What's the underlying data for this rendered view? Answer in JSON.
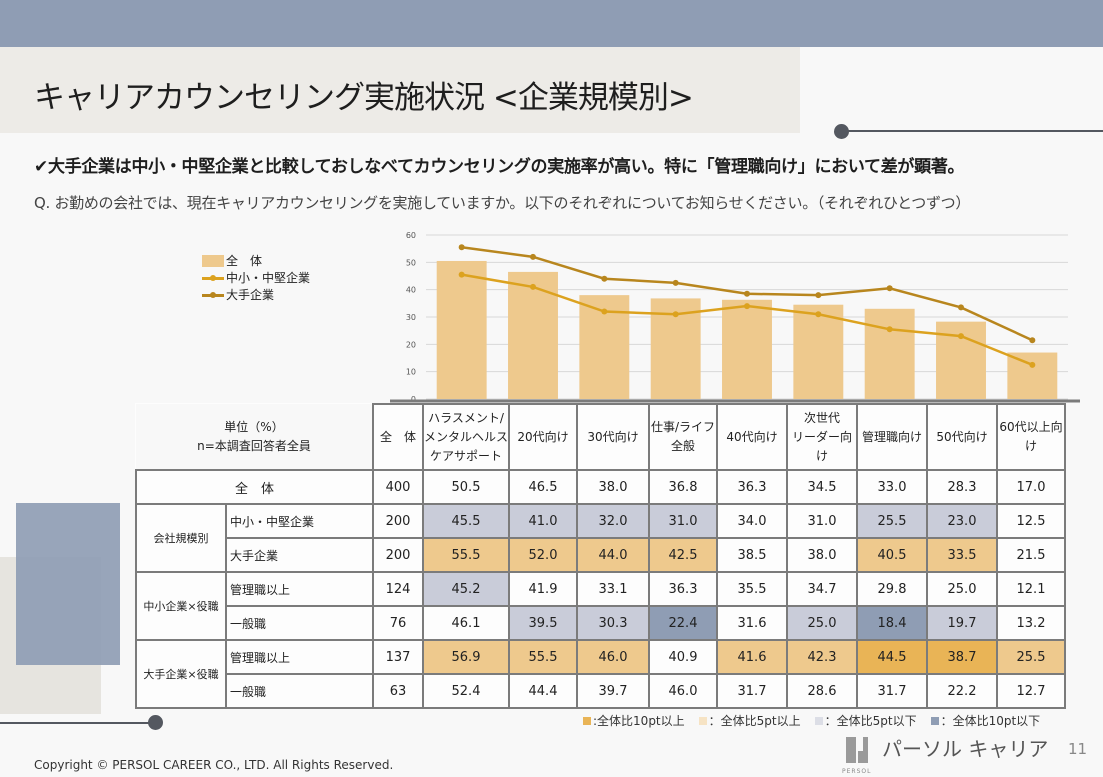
{
  "header": {
    "title": "キャリアカウンセリング実施状況 <企業規模別>"
  },
  "headline": "✔大手企業は中小・中堅企業と比較しておしなべてカウンセリングの実施率が高い。特に「管理職向け」において差が顕著。",
  "question": "Q.  お勤めの会社では、現在キャリアカウンセリングを実施していますか。以下のそれぞれについてお知らせください。（それぞれひとつずつ）",
  "colors": {
    "bar": "#eec98d",
    "line_sme": "#dca21f",
    "line_large": "#b8861e",
    "top_band": "#8f9db4",
    "plus10": "#e9b456",
    "plus5": "#eec98d",
    "minus5": "#c9ccd9",
    "minus10": "#8f9db4"
  },
  "chart_data": {
    "type": "bar",
    "title": "",
    "xlabel": "",
    "ylabel": "",
    "ylim": [
      0,
      60
    ],
    "yticks": [
      "0",
      "10",
      "20",
      "30",
      "40",
      "50",
      "60"
    ],
    "grid": true,
    "legend_position": "top-left",
    "categories": [
      "ハラスメント/メンタルヘルスケアサポート",
      "20代向け",
      "30代向け",
      "仕事/ライフ全般",
      "40代向け",
      "次世代リーダー向け",
      "管理職向け",
      "50代向け",
      "60代以上向け"
    ],
    "series": [
      {
        "name": "全　体",
        "kind": "bar",
        "values": [
          50.5,
          46.5,
          38.0,
          36.8,
          36.3,
          34.5,
          33.0,
          28.3,
          17.0
        ]
      },
      {
        "name": "中小・中堅企業",
        "kind": "line",
        "values": [
          45.5,
          41.0,
          32.0,
          31.0,
          34.0,
          31.0,
          25.5,
          23.0,
          12.5
        ]
      },
      {
        "name": "大手企業",
        "kind": "line",
        "values": [
          55.5,
          52.0,
          44.0,
          42.5,
          38.5,
          38.0,
          40.5,
          33.5,
          21.5
        ]
      }
    ]
  },
  "legend": {
    "total": "全　体",
    "sme": "中小・中堅企業",
    "large": "大手企業"
  },
  "table": {
    "unit_label": "単位（%）",
    "base_label": "n=本調査回答者全員",
    "n_header": "全　体",
    "headers": [
      "ハラスメント/\nメンタルヘルス\nケアサポート",
      "20代向け",
      "30代向け",
      "仕事/ライフ\n全般",
      "40代向け",
      "次世代\nリーダー向\nけ",
      "管理職向け",
      "50代向け",
      "60代以上向\nけ"
    ],
    "total_row": {
      "label": "全　体",
      "n": "400",
      "values": [
        "50.5",
        "46.5",
        "38.0",
        "36.8",
        "36.3",
        "34.5",
        "33.0",
        "28.3",
        "17.0"
      ]
    },
    "groups": [
      {
        "label": "会社規模別",
        "rows": [
          {
            "label": "中小・中堅企業",
            "n": "200",
            "values": [
              "45.5",
              "41.0",
              "32.0",
              "31.0",
              "34.0",
              "31.0",
              "25.5",
              "23.0",
              "12.5"
            ],
            "shade": [
              "m5",
              "m5",
              "m5",
              "m5",
              "",
              "",
              "m5",
              "m5",
              ""
            ]
          },
          {
            "label": "大手企業",
            "n": "200",
            "values": [
              "55.5",
              "52.0",
              "44.0",
              "42.5",
              "38.5",
              "38.0",
              "40.5",
              "33.5",
              "21.5"
            ],
            "shade": [
              "p5",
              "p5",
              "p5",
              "p5",
              "",
              "",
              "p5",
              "p5",
              ""
            ]
          }
        ]
      },
      {
        "label": "中小企業×役職",
        "rows": [
          {
            "label": "管理職以上",
            "n": "124",
            "values": [
              "45.2",
              "41.9",
              "33.1",
              "36.3",
              "35.5",
              "34.7",
              "29.8",
              "25.0",
              "12.1"
            ],
            "shade": [
              "m5",
              "",
              "",
              "",
              "",
              "",
              "",
              "",
              ""
            ]
          },
          {
            "label": "一般職",
            "n": "76",
            "values": [
              "46.1",
              "39.5",
              "30.3",
              "22.4",
              "31.6",
              "25.0",
              "18.4",
              "19.7",
              "13.2"
            ],
            "shade": [
              "",
              "m5",
              "m5",
              "m10",
              "",
              "m5",
              "m10",
              "m5",
              ""
            ]
          }
        ]
      },
      {
        "label": "大手企業×役職",
        "rows": [
          {
            "label": "管理職以上",
            "n": "137",
            "values": [
              "56.9",
              "55.5",
              "46.0",
              "40.9",
              "41.6",
              "42.3",
              "44.5",
              "38.7",
              "25.5"
            ],
            "shade": [
              "p5",
              "p5",
              "p5",
              "",
              "p5",
              "p5",
              "p10",
              "p10",
              "p5"
            ]
          },
          {
            "label": "一般職",
            "n": "63",
            "values": [
              "52.4",
              "44.4",
              "39.7",
              "46.0",
              "31.7",
              "28.6",
              "31.7",
              "22.2",
              "12.7"
            ],
            "shade": [
              "",
              "",
              "",
              "",
              "",
              "",
              "",
              "",
              ""
            ]
          }
        ]
      }
    ]
  },
  "color_legend": [
    {
      "key": "p10",
      "label": ":全体比10pt以上"
    },
    {
      "key": "p5",
      "label": "：全体比5pt以上"
    },
    {
      "key": "m5",
      "label": "：全体比5pt以下"
    },
    {
      "key": "m10",
      "label": "：全体比10pt以下"
    }
  ],
  "footer": {
    "copyright": "Copyright © PERSOL CAREER CO., LTD. All Rights Reserved.",
    "brand_name": "パーソル キャリア",
    "brand_sub": "PERSOL",
    "page_number": "11"
  }
}
